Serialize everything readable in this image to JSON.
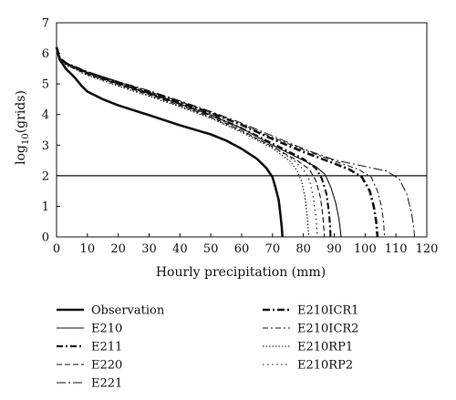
{
  "chart_data": {
    "type": "line",
    "xlabel": "Hourly precipitation (mm)",
    "ylabel_base": "log",
    "ylabel_sub": "10",
    "ylabel_rest": "(grids)",
    "xlim": [
      0,
      120
    ],
    "ylim": [
      0,
      7
    ],
    "x_ticks": [
      0,
      10,
      20,
      30,
      40,
      50,
      60,
      70,
      80,
      90,
      100,
      110,
      120
    ],
    "y_ticks": [
      0,
      1,
      2,
      3,
      4,
      5,
      6,
      7
    ],
    "reference_line": {
      "y": 2
    },
    "series": [
      {
        "name": "Observation",
        "style": "thick-solid",
        "points": [
          [
            0,
            6.2
          ],
          [
            1,
            5.8
          ],
          [
            3,
            5.5
          ],
          [
            6,
            5.2
          ],
          [
            8,
            4.95
          ],
          [
            10,
            4.75
          ],
          [
            15,
            4.5
          ],
          [
            20,
            4.3
          ],
          [
            30,
            3.98
          ],
          [
            40,
            3.65
          ],
          [
            50,
            3.35
          ],
          [
            55,
            3.15
          ],
          [
            60,
            2.88
          ],
          [
            65,
            2.55
          ],
          [
            68,
            2.25
          ],
          [
            70,
            1.95
          ],
          [
            71,
            1.6
          ],
          [
            72,
            1.2
          ],
          [
            72.6,
            0.7
          ],
          [
            73,
            0.3
          ],
          [
            73.2,
            0
          ]
        ]
      },
      {
        "name": "E210",
        "style": "thin-solid",
        "points": [
          [
            0,
            6.2
          ],
          [
            1,
            5.85
          ],
          [
            3,
            5.65
          ],
          [
            10,
            5.35
          ],
          [
            20,
            5.0
          ],
          [
            30,
            4.68
          ],
          [
            40,
            4.35
          ],
          [
            50,
            3.98
          ],
          [
            60,
            3.55
          ],
          [
            70,
            3.0
          ],
          [
            80,
            2.5
          ],
          [
            84,
            2.3
          ],
          [
            87,
            2.05
          ],
          [
            89,
            1.6
          ],
          [
            90.5,
            1.1
          ],
          [
            91.5,
            0.6
          ],
          [
            92,
            0.2
          ],
          [
            92.2,
            0
          ]
        ]
      },
      {
        "name": "E211",
        "style": "dash-dot-heavy",
        "points": [
          [
            0,
            6.2
          ],
          [
            1,
            5.85
          ],
          [
            3,
            5.68
          ],
          [
            10,
            5.35
          ],
          [
            20,
            5.02
          ],
          [
            30,
            4.7
          ],
          [
            40,
            4.35
          ],
          [
            50,
            3.98
          ],
          [
            60,
            3.55
          ],
          [
            70,
            3.05
          ],
          [
            80,
            2.55
          ],
          [
            84,
            2.25
          ],
          [
            86,
            1.9
          ],
          [
            87.5,
            1.4
          ],
          [
            88.3,
            0.8
          ],
          [
            88.7,
            0.3
          ],
          [
            88.8,
            0
          ]
        ]
      },
      {
        "name": "E220",
        "style": "dashed",
        "points": [
          [
            0,
            6.2
          ],
          [
            1,
            5.85
          ],
          [
            3,
            5.65
          ],
          [
            10,
            5.32
          ],
          [
            20,
            4.98
          ],
          [
            30,
            4.65
          ],
          [
            40,
            4.3
          ],
          [
            50,
            3.92
          ],
          [
            60,
            3.48
          ],
          [
            70,
            2.95
          ],
          [
            78,
            2.5
          ],
          [
            82,
            2.2
          ],
          [
            84,
            1.85
          ],
          [
            85.5,
            1.3
          ],
          [
            86.3,
            0.7
          ],
          [
            86.7,
            0.2
          ],
          [
            86.8,
            0
          ]
        ]
      },
      {
        "name": "E221",
        "style": "long-dash-dot",
        "points": [
          [
            0,
            6.2
          ],
          [
            1,
            5.85
          ],
          [
            3,
            5.68
          ],
          [
            10,
            5.4
          ],
          [
            20,
            5.08
          ],
          [
            30,
            4.78
          ],
          [
            40,
            4.45
          ],
          [
            50,
            4.1
          ],
          [
            60,
            3.72
          ],
          [
            70,
            3.3
          ],
          [
            80,
            2.88
          ],
          [
            90,
            2.52
          ],
          [
            100,
            2.3
          ],
          [
            107,
            2.15
          ],
          [
            111,
            1.9
          ],
          [
            113.5,
            1.4
          ],
          [
            115,
            0.8
          ],
          [
            115.8,
            0.3
          ],
          [
            116,
            0
          ]
        ]
      },
      {
        "name": "E210ICR1",
        "style": "dash-dot-bold",
        "points": [
          [
            0,
            6.2
          ],
          [
            1,
            5.85
          ],
          [
            3,
            5.68
          ],
          [
            10,
            5.38
          ],
          [
            20,
            5.05
          ],
          [
            30,
            4.73
          ],
          [
            40,
            4.4
          ],
          [
            50,
            4.05
          ],
          [
            60,
            3.66
          ],
          [
            70,
            3.2
          ],
          [
            80,
            2.78
          ],
          [
            90,
            2.4
          ],
          [
            95,
            2.2
          ],
          [
            99,
            1.95
          ],
          [
            101.5,
            1.5
          ],
          [
            102.8,
            1.0
          ],
          [
            103.6,
            0.5
          ],
          [
            104,
            0
          ]
        ]
      },
      {
        "name": "E210ICR2",
        "style": "dash-dot-thin",
        "points": [
          [
            0,
            6.2
          ],
          [
            1,
            5.85
          ],
          [
            3,
            5.68
          ],
          [
            10,
            5.38
          ],
          [
            20,
            5.06
          ],
          [
            30,
            4.75
          ],
          [
            40,
            4.42
          ],
          [
            50,
            4.06
          ],
          [
            60,
            3.68
          ],
          [
            70,
            3.25
          ],
          [
            80,
            2.85
          ],
          [
            90,
            2.48
          ],
          [
            98,
            2.2
          ],
          [
            102,
            1.95
          ],
          [
            104,
            1.5
          ],
          [
            105.3,
            1.0
          ],
          [
            106,
            0.5
          ],
          [
            106.3,
            0
          ]
        ]
      },
      {
        "name": "E210RP1",
        "style": "dotted",
        "points": [
          [
            0,
            6.2
          ],
          [
            1,
            5.85
          ],
          [
            3,
            5.62
          ],
          [
            10,
            5.28
          ],
          [
            20,
            4.93
          ],
          [
            30,
            4.6
          ],
          [
            40,
            4.25
          ],
          [
            50,
            3.88
          ],
          [
            60,
            3.42
          ],
          [
            70,
            2.9
          ],
          [
            76,
            2.45
          ],
          [
            78,
            2.15
          ],
          [
            79.5,
            1.8
          ],
          [
            80.5,
            1.3
          ],
          [
            81.2,
            0.7
          ],
          [
            81.6,
            0.2
          ],
          [
            81.7,
            0
          ]
        ]
      },
      {
        "name": "E210RP2",
        "style": "dotted-sparse",
        "points": [
          [
            0,
            6.2
          ],
          [
            1,
            5.85
          ],
          [
            3,
            5.63
          ],
          [
            10,
            5.3
          ],
          [
            20,
            4.95
          ],
          [
            30,
            4.62
          ],
          [
            40,
            4.28
          ],
          [
            50,
            3.9
          ],
          [
            60,
            3.45
          ],
          [
            70,
            2.95
          ],
          [
            77,
            2.5
          ],
          [
            80,
            2.2
          ],
          [
            82,
            1.85
          ],
          [
            83.2,
            1.3
          ],
          [
            84,
            0.7
          ],
          [
            84.4,
            0.2
          ],
          [
            84.5,
            0
          ]
        ]
      }
    ]
  }
}
